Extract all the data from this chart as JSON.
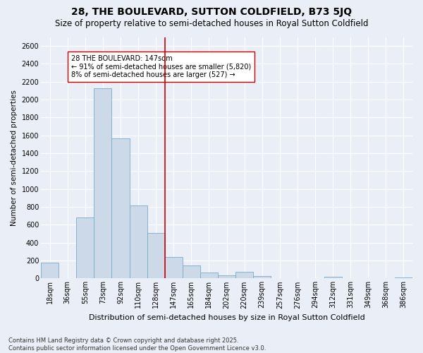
{
  "title": "28, THE BOULEVARD, SUTTON COLDFIELD, B73 5JQ",
  "subtitle": "Size of property relative to semi-detached houses in Royal Sutton Coldfield",
  "xlabel": "Distribution of semi-detached houses by size in Royal Sutton Coldfield",
  "ylabel": "Number of semi-detached properties",
  "bar_color": "#ccd9e8",
  "bar_edge_color": "#7aaac8",
  "line_color": "#cc0000",
  "annotation_title": "28 THE BOULEVARD: 147sqm",
  "annotation_line1": "← 91% of semi-detached houses are smaller (5,820)",
  "annotation_line2": "8% of semi-detached houses are larger (527) →",
  "categories": [
    "18sqm",
    "36sqm",
    "55sqm",
    "73sqm",
    "92sqm",
    "110sqm",
    "128sqm",
    "147sqm",
    "165sqm",
    "184sqm",
    "202sqm",
    "220sqm",
    "239sqm",
    "257sqm",
    "276sqm",
    "294sqm",
    "312sqm",
    "331sqm",
    "349sqm",
    "368sqm",
    "386sqm"
  ],
  "values": [
    175,
    0,
    680,
    2130,
    1570,
    820,
    510,
    240,
    145,
    65,
    35,
    75,
    25,
    0,
    0,
    0,
    20,
    0,
    0,
    0,
    8
  ],
  "ylim": [
    0,
    2700
  ],
  "yticks": [
    0,
    200,
    400,
    600,
    800,
    1000,
    1200,
    1400,
    1600,
    1800,
    2000,
    2200,
    2400,
    2600
  ],
  "background_color": "#eaeff7",
  "plot_bg_color": "#eaeff7",
  "grid_color": "#ffffff",
  "footer": "Contains HM Land Registry data © Crown copyright and database right 2025.\nContains public sector information licensed under the Open Government Licence v3.0.",
  "title_fontsize": 10,
  "subtitle_fontsize": 8.5,
  "xlabel_fontsize": 8,
  "ylabel_fontsize": 7.5,
  "tick_fontsize": 7,
  "annot_fontsize": 7,
  "footer_fontsize": 6
}
